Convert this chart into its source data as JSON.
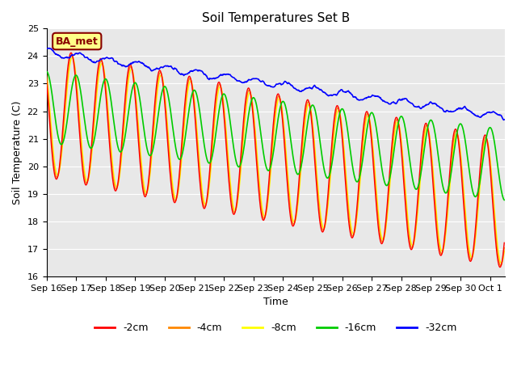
{
  "title": "Soil Temperatures Set B",
  "xlabel": "Time",
  "ylabel": "Soil Temperature (C)",
  "ylim": [
    16.0,
    25.0
  ],
  "yticks": [
    16.0,
    17.0,
    18.0,
    19.0,
    20.0,
    21.0,
    22.0,
    23.0,
    24.0,
    25.0
  ],
  "colors": {
    "-2cm": "#ff0000",
    "-4cm": "#ff8800",
    "-8cm": "#ffff00",
    "-16cm": "#00cc00",
    "-32cm": "#0000ff"
  },
  "legend_labels": [
    "-2cm",
    "-4cm",
    "-8cm",
    "-16cm",
    "-32cm"
  ],
  "annotation_text": "BA_met",
  "annotation_bg": "#ffff88",
  "annotation_border": "#880000",
  "plot_bg_color": "#e8e8e8",
  "title_fontsize": 11,
  "axis_fontsize": 9,
  "tick_fontsize": 8
}
